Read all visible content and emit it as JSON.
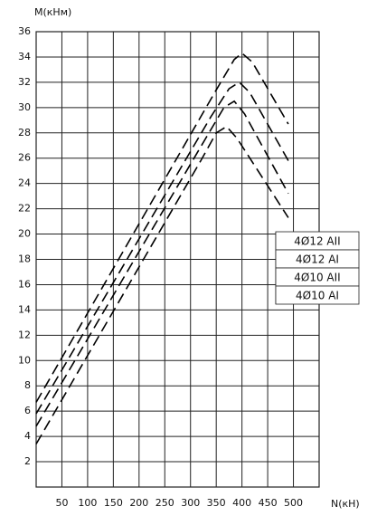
{
  "chart_data": {
    "type": "line",
    "y_label": "M(кНм)",
    "x_label": "N(кН)",
    "xlim": [
      0,
      550
    ],
    "xticks": [
      50,
      100,
      150,
      200,
      250,
      300,
      350,
      400,
      450,
      500
    ],
    "ylim": [
      0,
      36
    ],
    "yticks": [
      2,
      4,
      6,
      8,
      10,
      12,
      14,
      16,
      18,
      20,
      22,
      24,
      26,
      28,
      30,
      32,
      34,
      36
    ],
    "grid": true,
    "legend": "right",
    "series": [
      {
        "name": "4Ø12 AII",
        "color": "#000000",
        "x": [
          0,
          350,
          385,
          400,
          420,
          490
        ],
        "values": [
          6.7,
          31.4,
          33.8,
          34.3,
          33.6,
          28.7
        ]
      },
      {
        "name": "4Ø12 AI",
        "color": "#000000",
        "x": [
          0,
          340,
          375,
          395,
          415,
          490
        ],
        "values": [
          5.8,
          29.3,
          31.5,
          32.0,
          31.2,
          25.8
        ]
      },
      {
        "name": "4Ø10 AII",
        "color": "#000000",
        "x": [
          0,
          330,
          365,
          385,
          405,
          490
        ],
        "values": [
          4.8,
          27.6,
          30.0,
          30.5,
          29.5,
          23.2
        ]
      },
      {
        "name": "4Ø10 AI",
        "color": "#000000",
        "x": [
          0,
          320,
          350,
          370,
          390,
          490
        ],
        "values": [
          3.4,
          25.8,
          28.0,
          28.5,
          27.6,
          21.3
        ]
      }
    ]
  }
}
